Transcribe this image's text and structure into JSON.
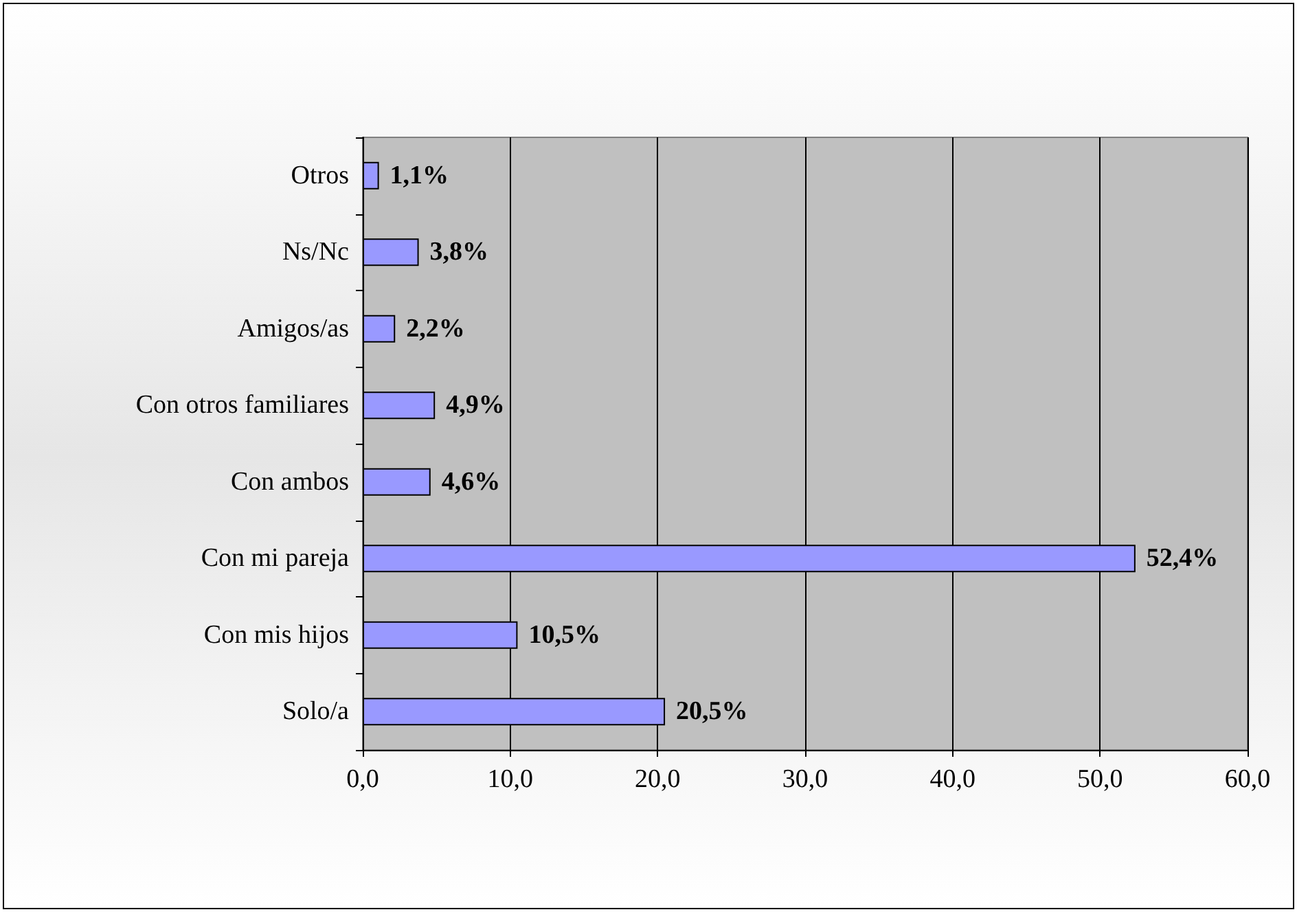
{
  "chart_data": {
    "type": "bar",
    "orientation": "horizontal",
    "categories": [
      "Otros",
      "Ns/Nc",
      "Amigos/as",
      "Con otros familiares",
      "Con ambos",
      "Con mi pareja",
      "Con mis hijos",
      "Solo/a"
    ],
    "values": [
      1.1,
      3.8,
      2.2,
      4.9,
      4.6,
      52.4,
      10.5,
      20.5
    ],
    "value_labels": [
      "1,1%",
      "3,8%",
      "2,2%",
      "4,9%",
      "4,6%",
      "52,4%",
      "10,5%",
      "20,5%"
    ],
    "color": "#9999ff",
    "xlim": [
      0,
      60
    ],
    "xticks": [
      {
        "value": 0,
        "label": "0,0"
      },
      {
        "value": 10,
        "label": "10,0"
      },
      {
        "value": 20,
        "label": "20,0"
      },
      {
        "value": 30,
        "label": "30,0"
      },
      {
        "value": 40,
        "label": "40,0"
      },
      {
        "value": 50,
        "label": "50,0"
      },
      {
        "value": 60,
        "label": "60,0"
      }
    ],
    "grid": "x"
  }
}
